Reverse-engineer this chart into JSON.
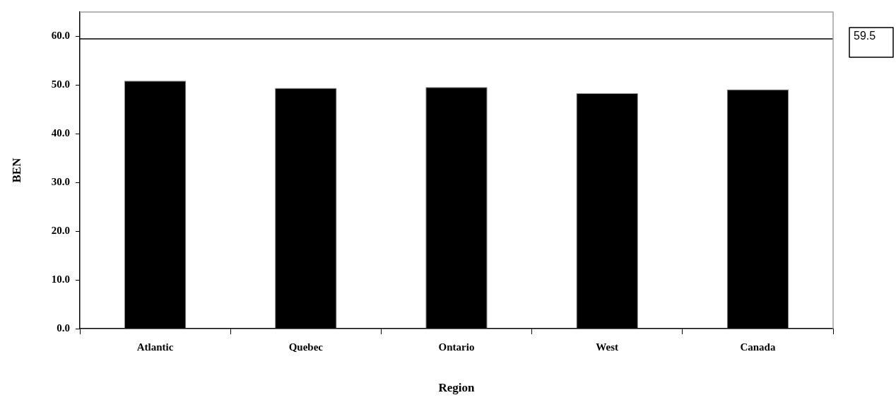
{
  "chart_data": {
    "type": "bar",
    "xlabel": "Region",
    "ylabel": "BEN",
    "categories": [
      "Atlantic",
      "Quebec",
      "Ontario",
      "West",
      "Canada"
    ],
    "values": [
      50.9,
      49.4,
      49.6,
      48.3,
      49.1
    ],
    "color": "#000000",
    "ylim": [
      0,
      65
    ],
    "yticks": [
      {
        "value": 0,
        "label": "0.0"
      },
      {
        "value": 10,
        "label": "10.0"
      },
      {
        "value": 20,
        "label": "20.0"
      },
      {
        "value": 30,
        "label": "30.0"
      },
      {
        "value": 40,
        "label": "40.0"
      },
      {
        "value": 50,
        "label": "50.0"
      },
      {
        "value": 60,
        "label": "60.0"
      }
    ],
    "ref_lines": [
      {
        "axis": "y",
        "value": 59.5,
        "label": "59.5",
        "color": "#000000"
      }
    ],
    "grid": false,
    "legend": false
  }
}
